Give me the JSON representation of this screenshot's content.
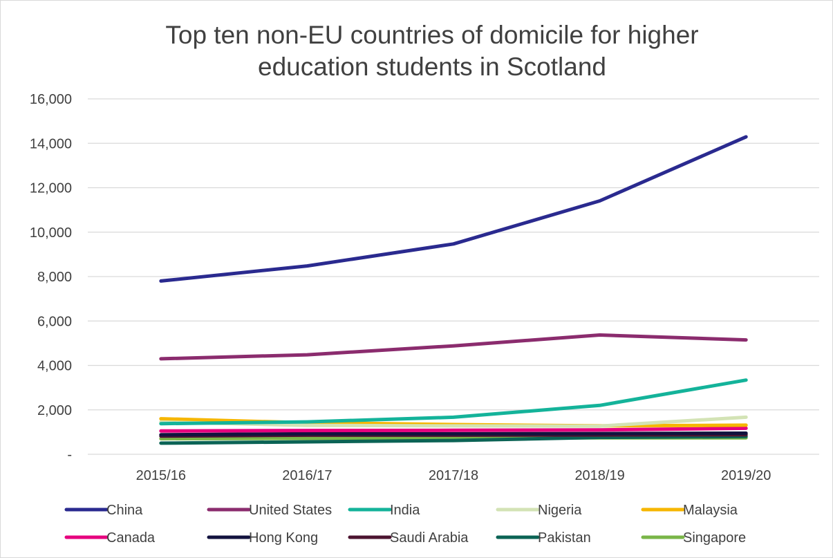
{
  "chart_data": {
    "type": "line",
    "title_line1": "Top ten non-EU countries of domicile for higher",
    "title_line2": "education students in Scotland",
    "categories": [
      "2015/16",
      "2016/17",
      "2017/18",
      "2018/19",
      "2019/20"
    ],
    "ylim": [
      0,
      16000
    ],
    "yticks": [
      {
        "value": 0,
        "label": "-"
      },
      {
        "value": 2000,
        "label": "2,000"
      },
      {
        "value": 4000,
        "label": "4,000"
      },
      {
        "value": 6000,
        "label": "6,000"
      },
      {
        "value": 8000,
        "label": "8,000"
      },
      {
        "value": 10000,
        "label": "10,000"
      },
      {
        "value": 12000,
        "label": "12,000"
      },
      {
        "value": 14000,
        "label": "14,000"
      },
      {
        "value": 16000,
        "label": "16,000"
      }
    ],
    "grid": true,
    "legend_position": "bottom",
    "series": [
      {
        "name": "China",
        "color": "#2a2a8f",
        "values": [
          7800,
          8480,
          9470,
          11410,
          14290
        ]
      },
      {
        "name": "United States",
        "color": "#8b2c6e",
        "values": [
          4300,
          4480,
          4880,
          5370,
          5150
        ]
      },
      {
        "name": "India",
        "color": "#14b39a",
        "values": [
          1380,
          1460,
          1670,
          2200,
          3340
        ]
      },
      {
        "name": "Nigeria",
        "color": "#d3e3b5",
        "values": [
          1450,
          1300,
          1280,
          1270,
          1670
        ]
      },
      {
        "name": "Malaysia",
        "color": "#f6b600",
        "values": [
          1600,
          1420,
          1340,
          1280,
          1310
        ]
      },
      {
        "name": "Canada",
        "color": "#e6007e",
        "values": [
          1050,
          1070,
          1080,
          1100,
          1170
        ]
      },
      {
        "name": "Hong Kong",
        "color": "#12123e",
        "values": [
          880,
          920,
          920,
          930,
          950
        ]
      },
      {
        "name": "Saudi Arabia",
        "color": "#4c1430",
        "values": [
          820,
          860,
          860,
          870,
          880
        ]
      },
      {
        "name": "Pakistan",
        "color": "#0b6355",
        "values": [
          500,
          560,
          620,
          760,
          800
        ]
      },
      {
        "name": "Singapore",
        "color": "#7ab648",
        "values": [
          700,
          720,
          730,
          740,
          740
        ]
      }
    ]
  }
}
